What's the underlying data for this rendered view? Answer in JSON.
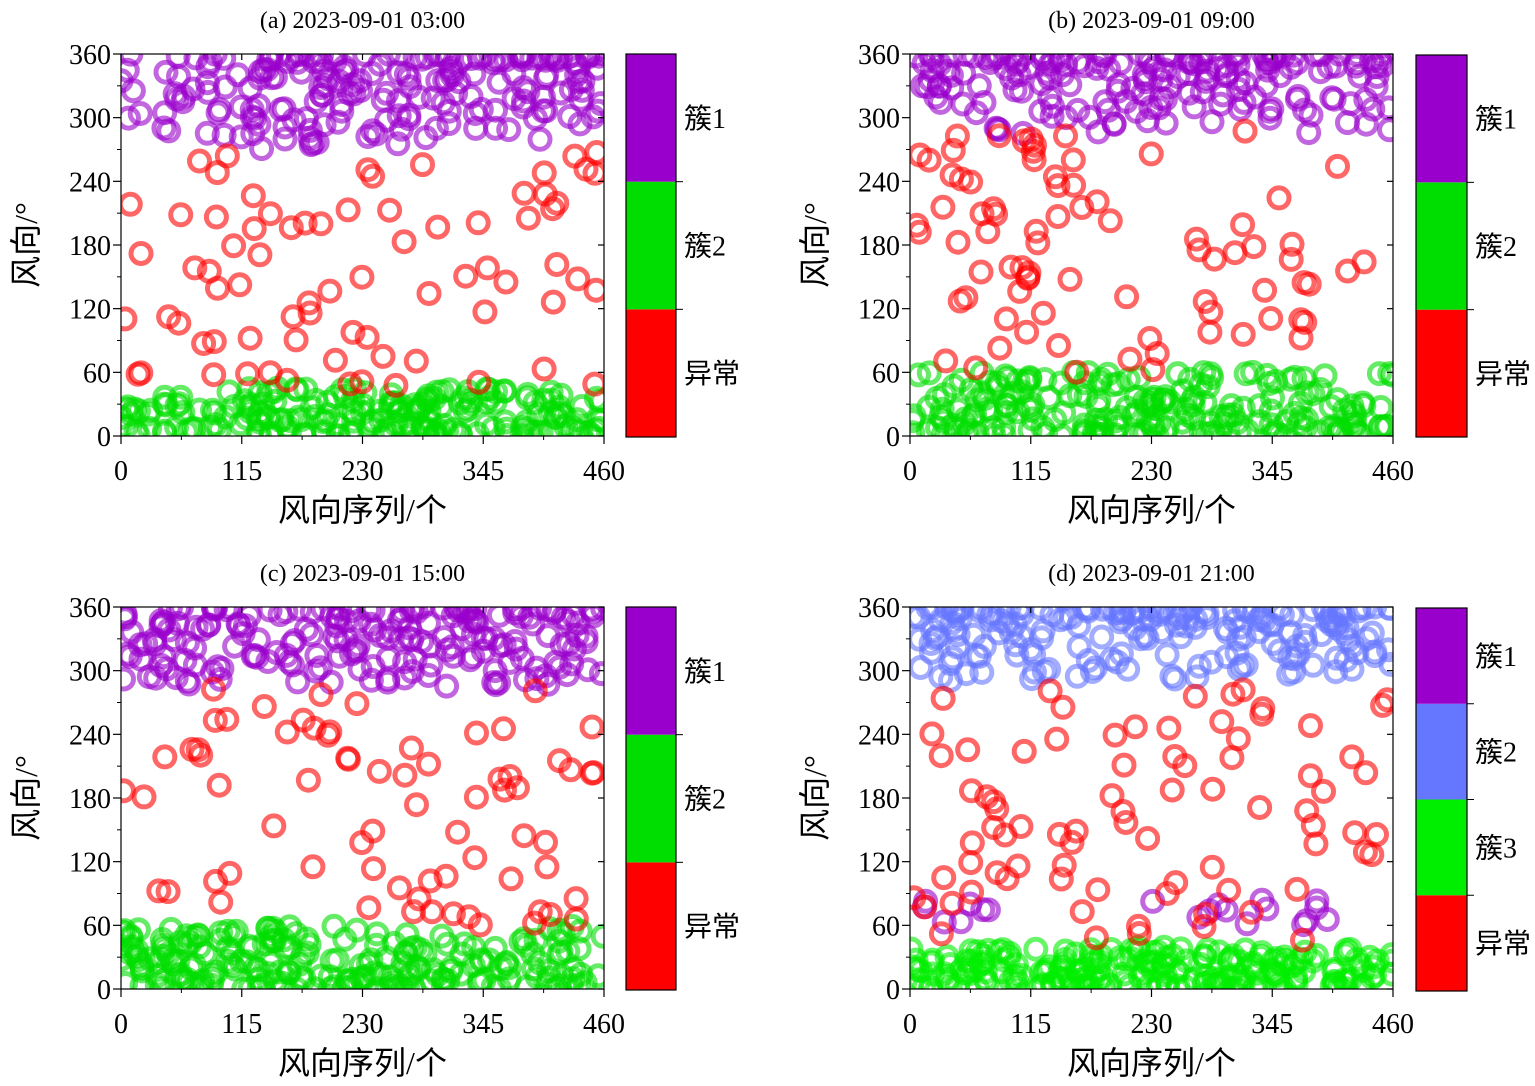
{
  "figure": {
    "xlabel": "风向序列/个",
    "ylabel": "风向/°",
    "xticks": [
      "0",
      "115",
      "230",
      "345",
      "460"
    ],
    "yticks": [
      "0",
      "60",
      "120",
      "180",
      "240",
      "300",
      "360"
    ]
  },
  "chart_data": [
    {
      "type": "scatter",
      "title": "(a) 2023-09-01 03:00",
      "xlabel": "风向序列/个",
      "ylabel": "风向/°",
      "xlim": [
        0,
        460
      ],
      "ylim": [
        0,
        360
      ],
      "legend": "right colorbar",
      "colors": {
        "簇1": "#9900cc",
        "簇2": "#00dd00",
        "异常": "#ff0000"
      },
      "series": [
        {
          "name": "簇1",
          "count": 200,
          "y_range": [
            270,
            360
          ]
        },
        {
          "name": "簇2",
          "count": 200,
          "y_range": [
            0,
            45
          ]
        },
        {
          "name": "异常",
          "count": 75,
          "y_range": [
            45,
            270
          ]
        }
      ],
      "colorbar": [
        "异常",
        "簇2",
        "簇1"
      ]
    },
    {
      "type": "scatter",
      "title": "(b) 2023-09-01 09:00",
      "xlabel": "风向序列/个",
      "ylabel": "风向/°",
      "xlim": [
        0,
        460
      ],
      "ylim": [
        0,
        360
      ],
      "legend": "right colorbar",
      "colors": {
        "簇1": "#9900cc",
        "簇2": "#00dd00",
        "异常": "#ff0000"
      },
      "series": [
        {
          "name": "簇1",
          "count": 180,
          "y_range": [
            285,
            360
          ]
        },
        {
          "name": "簇2",
          "count": 210,
          "y_range": [
            0,
            60
          ]
        },
        {
          "name": "异常",
          "count": 80,
          "y_range": [
            60,
            290
          ]
        }
      ],
      "colorbar": [
        "异常",
        "簇2",
        "簇1"
      ]
    },
    {
      "type": "scatter",
      "title": "(c) 2023-09-01 15:00",
      "xlabel": "风向序列/个",
      "ylabel": "风向/°",
      "xlim": [
        0,
        460
      ],
      "ylim": [
        0,
        360
      ],
      "legend": "right colorbar",
      "colors": {
        "簇1": "#9900cc",
        "簇2": "#00dd00",
        "异常": "#ff0000"
      },
      "series": [
        {
          "name": "簇1",
          "count": 200,
          "y_range": [
            285,
            360
          ]
        },
        {
          "name": "簇2",
          "count": 220,
          "y_range": [
            0,
            60
          ]
        },
        {
          "name": "异常",
          "count": 70,
          "y_range": [
            60,
            285
          ]
        }
      ],
      "colorbar": [
        "异常",
        "簇2",
        "簇1"
      ]
    },
    {
      "type": "scatter",
      "title": "(d) 2023-09-01 21:00",
      "xlabel": "风向序列/个",
      "ylabel": "风向/°",
      "xlim": [
        0,
        460
      ],
      "ylim": [
        0,
        360
      ],
      "legend": "right colorbar",
      "colors": {
        "簇1": "#9900cc",
        "簇2": "#6677ff",
        "簇3": "#00ee00",
        "异常": "#ff0000"
      },
      "series": [
        {
          "name": "簇1",
          "count": 20,
          "y_range": [
            60,
            85
          ]
        },
        {
          "name": "簇2",
          "count": 190,
          "y_range": [
            290,
            360
          ]
        },
        {
          "name": "簇3",
          "count": 210,
          "y_range": [
            0,
            40
          ]
        },
        {
          "name": "异常",
          "count": 80,
          "y_range": [
            45,
            285
          ]
        }
      ],
      "colorbar": [
        "异常",
        "簇3",
        "簇2",
        "簇1"
      ]
    }
  ]
}
